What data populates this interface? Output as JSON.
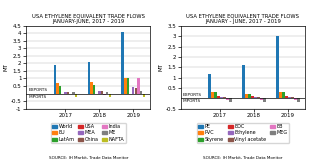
{
  "chart_data": [
    {
      "type": "bar",
      "title": "USA ETHYLENE EQUIVALENT TRADE FLOWS",
      "subtitle": "JANUARY-JUNE, 2017 - 2019",
      "ylabel": "MT",
      "annotations": [
        "SOURCE: IH Markit, Trade Data Monitor",
        "EXPORTS",
        "IMPORTS"
      ],
      "categories": [
        "2017",
        "2018",
        "2019"
      ],
      "series": [
        {
          "name": "World",
          "values": [
            1.9,
            2.1,
            4.1
          ]
        },
        {
          "name": "EU",
          "values": [
            0.7,
            0.8,
            1.0
          ]
        },
        {
          "name": "LatAm",
          "values": [
            0.5,
            0.6,
            1.0
          ]
        },
        {
          "name": "USA",
          "values": [
            -0.05,
            -0.05,
            -0.05
          ]
        },
        {
          "name": "MEA",
          "values": [
            0.12,
            0.18,
            0.42
          ]
        },
        {
          "name": "China",
          "values": [
            0.1,
            0.15,
            0.38
          ]
        },
        {
          "name": "India",
          "values": [
            -0.05,
            -0.08,
            1.0
          ]
        },
        {
          "name": "ME",
          "values": [
            0.08,
            0.08,
            0.2
          ]
        },
        {
          "name": "NAFTA",
          "values": [
            -0.2,
            -0.2,
            -0.22
          ]
        }
      ],
      "ylim": [
        -1.0,
        4.5
      ],
      "yticks": [
        -1,
        -0.5,
        0.5,
        1,
        1.5,
        2,
        2.5,
        3,
        3.5,
        4,
        4.5
      ],
      "grid": true
    },
    {
      "type": "bar",
      "title": "USA ETHYLENE EQUIVALENT TRADE FLOWS",
      "subtitle": "JANUARY - JUNE, 2017 - 2019",
      "ylabel": "MT",
      "annotations": [
        "SOURCE: IH Markit, Trade Data Monitor",
        "EXPORTS",
        "IMPORTS"
      ],
      "categories": [
        "2017",
        "2018",
        "2019"
      ],
      "series": [
        {
          "name": "PE",
          "values": [
            1.15,
            1.6,
            3.0
          ]
        },
        {
          "name": "PVC",
          "values": [
            0.28,
            0.22,
            0.32
          ]
        },
        {
          "name": "Styrene",
          "values": [
            0.28,
            0.22,
            0.32
          ]
        },
        {
          "name": "EDC",
          "values": [
            0.1,
            0.1,
            0.1
          ]
        },
        {
          "name": "Ethylene",
          "values": [
            0.05,
            0.05,
            0.05
          ]
        },
        {
          "name": "Vinyl acetate",
          "values": [
            0.04,
            0.04,
            0.04
          ]
        },
        {
          "name": "EB",
          "values": [
            -0.1,
            -0.1,
            -0.1
          ]
        },
        {
          "name": "MEG",
          "values": [
            -0.18,
            -0.18,
            -0.18
          ]
        }
      ],
      "ylim": [
        -0.5,
        3.5
      ],
      "yticks": [
        -0.5,
        0.5,
        1,
        1.5,
        2,
        2.5,
        3,
        3.5
      ],
      "grid": true
    }
  ]
}
